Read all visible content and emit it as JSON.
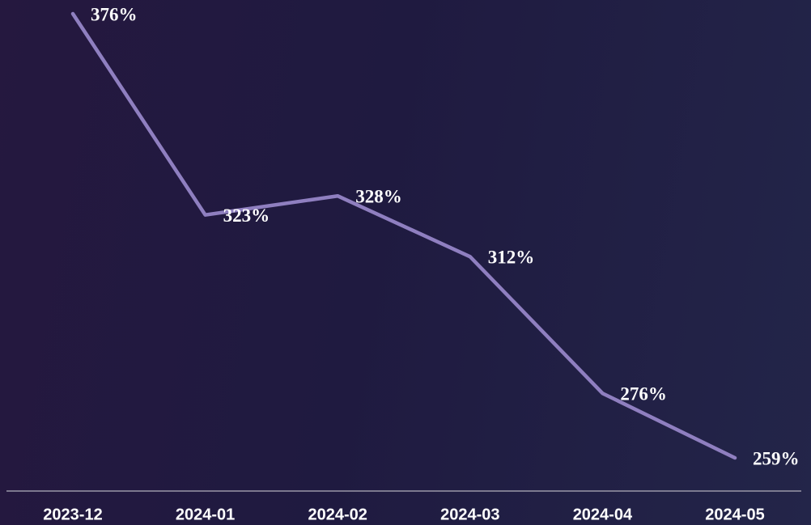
{
  "chart_data": {
    "type": "line",
    "categories": [
      "2023-12",
      "2024-01",
      "2024-02",
      "2024-03",
      "2024-04",
      "2024-05"
    ],
    "series": [
      {
        "color": "#8f7fc0",
        "values": [
          376,
          323,
          328,
          312,
          276,
          259
        ],
        "value_labels": [
          "376%",
          "323%",
          "328%",
          "312%",
          "276%",
          "259%"
        ]
      }
    ]
  }
}
